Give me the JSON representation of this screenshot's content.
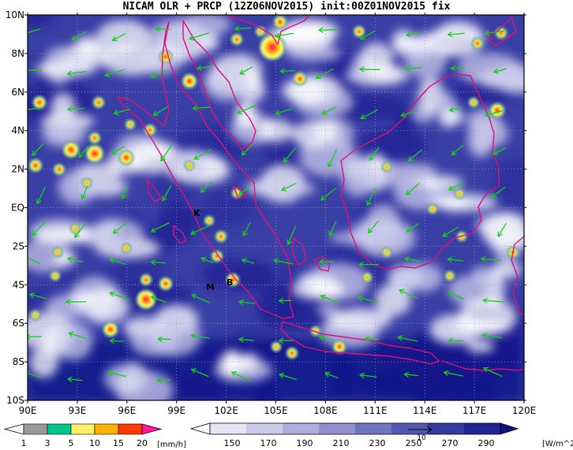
{
  "title": "NICAM OLR + PRCP (12Z06NOV2015) init:00Z01NOV2015 fix",
  "lon_labels": [
    "90E",
    "93E",
    "96E",
    "99E",
    "102E",
    "105E",
    "108E",
    "111E",
    "114E",
    "117E",
    "120E"
  ],
  "lat_labels": [
    "10N",
    "8N",
    "6N",
    "4N",
    "2N",
    "EQ",
    "2S",
    "4S",
    "6S",
    "8S",
    "10S"
  ],
  "precip_colorbar": {
    "ticks": [
      "1",
      "3",
      "5",
      "10",
      "15",
      "20"
    ],
    "unit": "[mm/h]",
    "colors": [
      "#ffffff",
      "#9a9a9a",
      "#00c58f",
      "#fff06a",
      "#ffb000",
      "#ff3a00",
      "#ff1aa0"
    ]
  },
  "olr_colorbar": {
    "ticks": [
      "150",
      "170",
      "190",
      "210",
      "230",
      "250",
      "270",
      "290"
    ],
    "unit": "[W/m^2]",
    "colors": [
      "#ffffff",
      "#e6e6f5",
      "#cbcbeb",
      "#adaedc",
      "#8f92cf",
      "#7074c1",
      "#5257b3",
      "#3439a3",
      "#1f2394",
      "#0f137f"
    ]
  },
  "wind_reference": "10",
  "places": [
    {
      "label": "K"
    },
    {
      "label": "B"
    },
    {
      "label": "M"
    }
  ],
  "colors": {
    "coast": "#e0107a",
    "wind": "#14d014",
    "background_ocean": "#3f44a8"
  }
}
